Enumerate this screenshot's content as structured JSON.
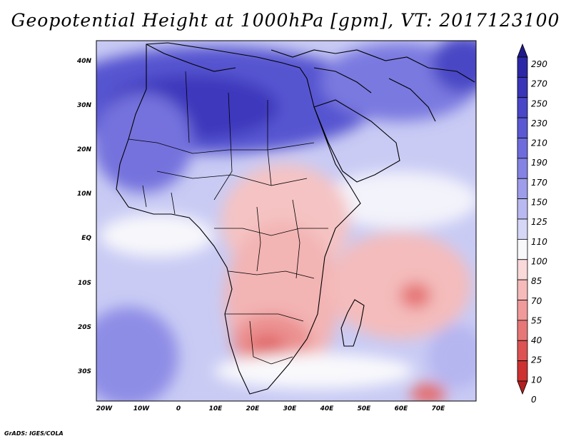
{
  "title": "Geopotential Height at 1000hPa [gpm], VT: 2017123100",
  "credit": "GrADS: IGES/COLA",
  "map": {
    "variable": "Geopotential Height at 1000hPa",
    "units": "gpm",
    "valid_time": "2017123100",
    "region": "Africa and Middle East",
    "lat_labels": [
      "40N",
      "30N",
      "20N",
      "10N",
      "EQ",
      "10S",
      "20S",
      "30S"
    ],
    "lon_labels": [
      "20W",
      "10W",
      "0",
      "10E",
      "20E",
      "30E",
      "40E",
      "50E",
      "60E",
      "70E"
    ]
  },
  "colorbar": {
    "labels": [
      "290",
      "270",
      "250",
      "230",
      "210",
      "190",
      "170",
      "150",
      "125",
      "110",
      "100",
      "85",
      "70",
      "55",
      "40",
      "25",
      "10",
      "0"
    ],
    "colors": [
      "#1f1a8a",
      "#2c27a6",
      "#3934b8",
      "#4a46c8",
      "#5b58d4",
      "#6e6cdc",
      "#8483e4",
      "#9d9deb",
      "#b9b9f1",
      "#d6d7f7",
      "#f8f8fb",
      "#f9d9d9",
      "#f6baba",
      "#f09a9a",
      "#e77777",
      "#dd5252",
      "#cd3131",
      "#b11f1f"
    ]
  },
  "colors": {
    "ocean_low": "#c6c8f3",
    "land_high": "#3f3bbd",
    "land_low": "#f08c8c"
  }
}
